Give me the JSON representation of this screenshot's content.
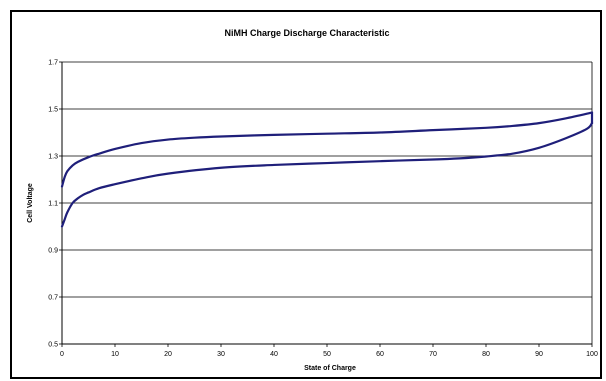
{
  "chart_data": {
    "type": "line",
    "title": "NiMH Charge Discharge Characteristic",
    "xlabel": "State of Charge",
    "ylabel": "Cell Voltage",
    "xlim": [
      0,
      100
    ],
    "ylim": [
      0.5,
      1.7
    ],
    "xticks": [
      "0",
      "10",
      "20",
      "30",
      "40",
      "50",
      "60",
      "70",
      "80",
      "90",
      "100"
    ],
    "yticks": [
      "0.5",
      "0.7",
      "0.9",
      "1.1",
      "1.3",
      "1.5",
      "1.7"
    ],
    "grid": "horizontal",
    "legend": "none",
    "line_color": "#1F1F7A",
    "series": [
      {
        "x": [
          0,
          0.5,
          1,
          2,
          3,
          5,
          7,
          10,
          15,
          20,
          25,
          30,
          40,
          50,
          60,
          70,
          80,
          85,
          90,
          95,
          100
        ],
        "y": [
          1.17,
          1.21,
          1.235,
          1.26,
          1.275,
          1.295,
          1.31,
          1.33,
          1.355,
          1.37,
          1.378,
          1.383,
          1.39,
          1.395,
          1.4,
          1.41,
          1.42,
          1.428,
          1.44,
          1.46,
          1.485
        ]
      },
      {
        "x": [
          0,
          0.5,
          1,
          2,
          3,
          4,
          5,
          7,
          10,
          15,
          20,
          30,
          40,
          50,
          60,
          70,
          75,
          80,
          85,
          90,
          95,
          99,
          100
        ],
        "y": [
          1.0,
          1.03,
          1.06,
          1.1,
          1.12,
          1.135,
          1.145,
          1.163,
          1.18,
          1.205,
          1.225,
          1.25,
          1.262,
          1.27,
          1.278,
          1.285,
          1.29,
          1.298,
          1.31,
          1.335,
          1.375,
          1.415,
          1.44
        ]
      }
    ]
  }
}
